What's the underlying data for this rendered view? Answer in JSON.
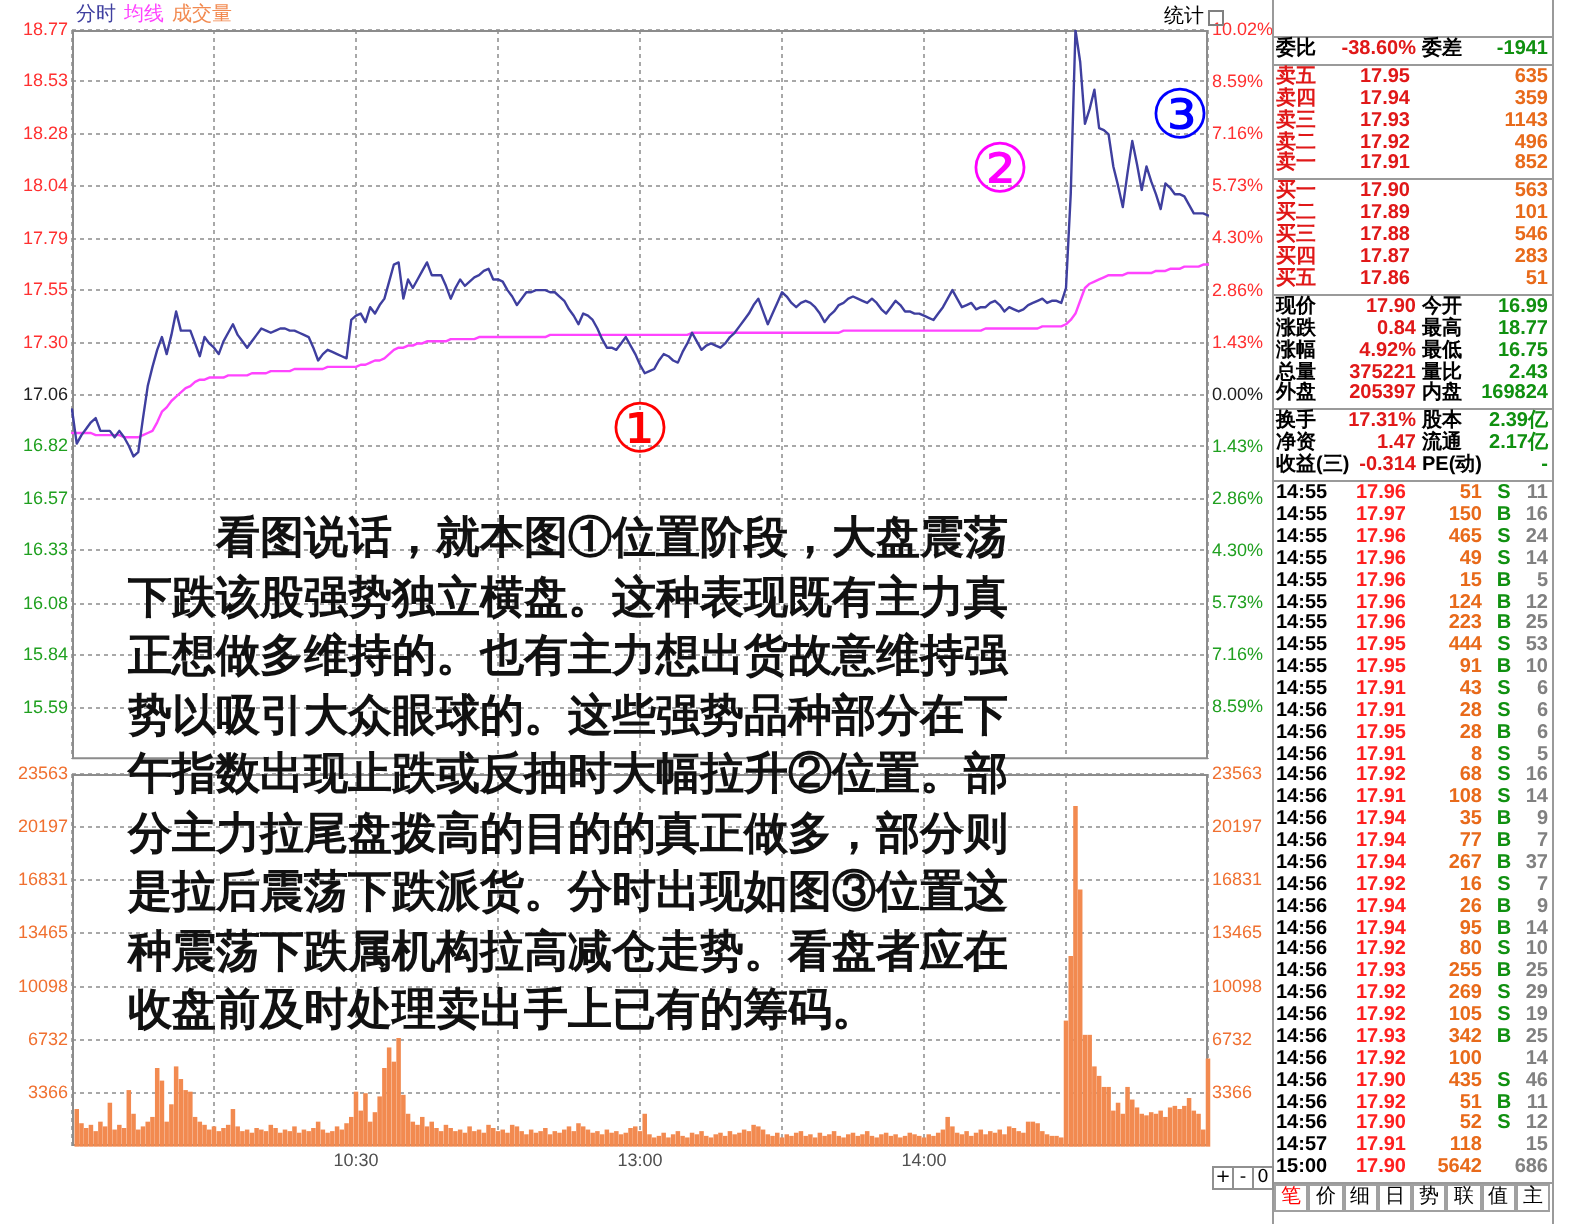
{
  "chart_data": [
    {
      "type": "line",
      "legend": "top left",
      "grid": true,
      "categories": [
        null,
        null,
        null,
        null,
        null,
        null,
        null,
        null,
        null,
        null,
        null,
        null,
        null,
        null,
        null,
        null,
        null,
        null,
        null,
        null,
        null,
        null,
        null,
        null,
        null,
        null,
        null,
        null,
        null,
        null,
        null,
        null,
        null,
        null,
        null,
        null,
        null,
        null,
        null,
        null,
        null,
        null,
        null,
        null,
        null,
        null,
        null,
        null,
        null,
        null,
        null,
        null,
        null,
        null,
        null,
        null,
        null,
        null,
        null,
        null,
        null,
        null,
        null,
        null,
        null,
        null,
        null,
        null,
        null,
        null,
        null,
        null,
        null,
        null,
        null,
        null,
        null,
        null,
        null,
        null,
        null,
        null,
        null,
        null,
        null,
        null,
        null,
        null,
        null,
        null,
        null,
        null,
        null,
        null,
        null,
        null,
        null,
        null,
        null,
        null,
        null,
        null,
        null,
        null,
        null,
        null,
        null,
        null,
        null,
        null,
        null,
        null,
        null,
        null,
        null,
        null,
        null,
        null,
        null,
        null,
        null,
        null,
        null,
        null,
        null,
        null,
        null,
        null,
        null,
        null,
        null,
        null,
        null,
        null,
        null,
        null,
        null,
        null,
        null,
        null,
        null,
        null,
        null,
        null,
        null,
        null,
        null,
        null,
        null,
        null,
        null,
        null,
        null,
        null,
        null,
        null,
        null,
        null,
        null,
        null,
        null,
        null,
        null,
        null,
        null,
        null,
        null,
        null,
        null,
        null,
        null,
        null,
        null,
        null,
        null,
        null,
        null,
        null,
        null,
        null,
        null,
        null,
        null,
        null,
        null,
        null,
        null,
        null,
        null,
        null,
        null,
        null,
        null,
        null,
        null,
        null,
        null,
        null,
        null,
        null,
        null,
        null,
        null,
        null,
        null,
        null,
        null,
        null,
        null,
        null,
        null,
        null,
        null,
        null,
        null,
        null,
        null,
        null,
        null,
        null,
        null,
        null,
        null,
        null,
        null,
        null,
        null,
        null,
        null,
        null,
        null,
        null,
        null,
        null,
        null,
        null,
        null,
        null,
        null,
        null,
        null
      ],
      "ylim": [
        15.35,
        18.77
      ],
      "yticks": [
        18.77,
        18.53,
        18.28,
        18.04,
        17.79,
        17.55,
        {
          "value": 17.3,
          "label": "17.30"
        },
        17.06,
        16.82,
        16.57,
        16.33,
        16.08,
        15.84,
        15.59
      ],
      "y2lim": [
        -10.02,
        10.02
      ],
      "y2ticks": [
        {
          "value": 10.02,
          "label": "10.02%"
        },
        {
          "value": 8.59,
          "label": "8.59%"
        },
        {
          "value": 7.16,
          "label": "7.16%"
        },
        {
          "value": 5.73,
          "label": "5.73%"
        },
        {
          "value": 4.3,
          "label": "4.30%"
        },
        {
          "value": 2.86,
          "label": "2.86%"
        },
        {
          "value": 1.43,
          "label": "1.43%"
        },
        {
          "value": 0,
          "label": "0.00%"
        },
        {
          "value": -1.43,
          "label": "1.43%"
        },
        {
          "value": -2.86,
          "label": "2.86%"
        },
        {
          "value": -4.3,
          "label": "4.30%"
        },
        {
          "value": -5.73,
          "label": "5.73%"
        },
        {
          "value": -7.16,
          "label": "7.16%"
        },
        {
          "value": -8.59,
          "label": "8.59%"
        }
      ],
      "series": [
        {
          "name": "分时",
          "color": "#3f3f9f",
          "values": [
            16.99,
            16.83,
            16.87,
            16.9,
            16.93,
            16.95,
            16.89,
            16.89,
            16.89,
            16.86,
            16.89,
            16.86,
            16.82,
            16.77,
            16.79,
            16.95,
            17.1,
            17.19,
            17.27,
            17.33,
            17.25,
            17.34,
            17.45,
            17.36,
            17.36,
            17.36,
            17.3,
            17.24,
            17.33,
            17.3,
            17.28,
            17.25,
            17.31,
            17.35,
            17.39,
            17.34,
            17.31,
            17.28,
            17.31,
            17.34,
            17.37,
            17.36,
            17.35,
            17.36,
            17.37,
            17.37,
            17.36,
            17.36,
            17.35,
            17.34,
            17.33,
            17.28,
            17.22,
            17.25,
            17.27,
            17.26,
            17.25,
            17.24,
            17.23,
            17.41,
            17.43,
            17.44,
            17.4,
            17.47,
            17.44,
            17.48,
            17.51,
            17.59,
            17.67,
            17.68,
            17.51,
            17.6,
            17.56,
            17.6,
            17.64,
            17.68,
            17.62,
            17.62,
            17.62,
            17.57,
            17.51,
            17.56,
            17.6,
            17.57,
            17.59,
            17.61,
            17.62,
            17.64,
            17.65,
            17.6,
            17.6,
            17.59,
            17.55,
            17.52,
            17.48,
            17.51,
            17.54,
            17.54,
            17.55,
            17.55,
            17.55,
            17.54,
            17.54,
            17.52,
            17.5,
            17.46,
            17.43,
            17.39,
            17.44,
            17.43,
            17.41,
            17.37,
            17.32,
            17.28,
            17.28,
            17.27,
            17.3,
            17.33,
            17.29,
            17.25,
            17.2,
            17.16,
            17.17,
            17.18,
            17.22,
            17.25,
            17.24,
            17.22,
            17.21,
            17.26,
            17.3,
            17.35,
            17.31,
            17.27,
            17.29,
            17.3,
            17.29,
            17.28,
            17.3,
            17.33,
            17.35,
            17.38,
            17.41,
            17.44,
            17.48,
            17.51,
            17.45,
            17.39,
            17.44,
            17.49,
            17.54,
            17.52,
            17.49,
            17.47,
            17.49,
            17.5,
            17.49,
            17.47,
            17.44,
            17.4,
            17.43,
            17.45,
            17.48,
            17.49,
            17.51,
            17.52,
            17.51,
            17.5,
            17.49,
            17.51,
            17.49,
            17.46,
            17.44,
            17.47,
            17.5,
            17.48,
            17.45,
            17.45,
            17.44,
            17.44,
            17.43,
            17.42,
            17.41,
            17.44,
            17.47,
            17.51,
            17.55,
            17.51,
            17.47,
            17.48,
            17.49,
            17.46,
            17.47,
            17.47,
            17.49,
            17.5,
            17.48,
            17.45,
            17.47,
            17.46,
            17.45,
            17.46,
            17.48,
            17.49,
            17.5,
            17.51,
            17.49,
            17.5,
            17.5,
            17.49,
            17.56,
            18.0,
            18.77,
            18.62,
            18.33,
            18.4,
            18.49,
            18.31,
            18.3,
            18.28,
            18.13,
            18.04,
            17.94,
            18.1,
            18.25,
            18.14,
            18.02,
            18.13,
            18.06,
            18.0,
            17.93,
            18.05,
            18.03,
            18.0,
            18.0,
            17.99,
            17.95,
            17.91,
            17.91,
            17.91,
            17.9
          ]
        },
        {
          "name": "均线",
          "color": "#ff44ff",
          "values": [
            16.88,
            16.88,
            16.88,
            16.88,
            16.88,
            16.87,
            16.87,
            16.87,
            16.87,
            16.87,
            16.87,
            16.86,
            16.86,
            16.86,
            16.86,
            16.87,
            16.88,
            16.89,
            16.93,
            16.98,
            17.0,
            17.03,
            17.05,
            17.07,
            17.09,
            17.1,
            17.12,
            17.13,
            17.13,
            17.14,
            17.14,
            17.14,
            17.14,
            17.15,
            17.15,
            17.15,
            17.15,
            17.15,
            17.16,
            17.16,
            17.16,
            17.16,
            17.17,
            17.17,
            17.17,
            17.17,
            17.17,
            17.18,
            17.18,
            17.18,
            17.18,
            17.18,
            17.18,
            17.18,
            17.19,
            17.19,
            17.19,
            17.19,
            17.19,
            17.19,
            17.19,
            17.2,
            17.2,
            17.21,
            17.22,
            17.22,
            17.23,
            17.25,
            17.27,
            17.28,
            17.28,
            17.29,
            17.29,
            17.3,
            17.3,
            17.31,
            17.31,
            17.31,
            17.31,
            17.31,
            17.32,
            17.32,
            17.32,
            17.32,
            17.32,
            17.32,
            17.33,
            17.33,
            17.33,
            17.33,
            17.33,
            17.33,
            17.33,
            17.33,
            17.33,
            17.33,
            17.33,
            17.33,
            17.33,
            17.33,
            17.33,
            17.34,
            17.34,
            17.34,
            17.34,
            17.34,
            17.34,
            17.34,
            17.34,
            17.34,
            17.34,
            17.34,
            17.34,
            17.34,
            17.34,
            17.34,
            17.34,
            17.34,
            17.34,
            17.34,
            17.34,
            17.34,
            17.34,
            17.34,
            17.34,
            17.34,
            17.34,
            17.34,
            17.34,
            17.34,
            17.34,
            17.35,
            17.35,
            17.35,
            17.35,
            17.35,
            17.35,
            17.35,
            17.35,
            17.35,
            17.35,
            17.35,
            17.35,
            17.35,
            17.35,
            17.35,
            17.35,
            17.35,
            17.35,
            17.35,
            17.35,
            17.35,
            17.35,
            17.35,
            17.35,
            17.35,
            17.35,
            17.35,
            17.35,
            17.35,
            17.35,
            17.35,
            17.35,
            17.36,
            17.36,
            17.36,
            17.36,
            17.36,
            17.36,
            17.36,
            17.36,
            17.36,
            17.36,
            17.36,
            17.36,
            17.36,
            17.36,
            17.36,
            17.36,
            17.36,
            17.36,
            17.36,
            17.36,
            17.36,
            17.36,
            17.36,
            17.36,
            17.36,
            17.36,
            17.36,
            17.36,
            17.36,
            17.36,
            17.37,
            17.37,
            17.37,
            17.37,
            17.37,
            17.37,
            17.37,
            17.37,
            17.37,
            17.37,
            17.37,
            17.37,
            17.38,
            17.38,
            17.38,
            17.38,
            17.38,
            17.39,
            17.41,
            17.44,
            17.5,
            17.56,
            17.58,
            17.59,
            17.6,
            17.61,
            17.62,
            17.62,
            17.62,
            17.62,
            17.63,
            17.63,
            17.63,
            17.63,
            17.63,
            17.63,
            17.64,
            17.64,
            17.64,
            17.65,
            17.65,
            17.65,
            17.66,
            17.66,
            17.66,
            17.66,
            17.67,
            17.67
          ]
        }
      ],
      "annotations": [
        "统计",
        "①",
        "②",
        "③",
        "看图说话，就本图①位置阶段，大盘震荡下跌该股强势独立横盘。这种表现既有主力真正想做多维持的。也有主力想出货故意维持强势以吸引大众眼球的。这些强势品种部分在下午指数出现止跌或反抽时大幅拉升②位置。部分主力拉尾盘拨高的目的的真正做多，部分则是拉后震荡下跌派货。分时出现如图③位置这种震荡下跌属机构拉高减仓走势。看盘者应在收盘前及时处理卖出手上已有的筹码。"
      ]
    },
    {
      "type": "bar",
      "legend": "top left",
      "grid": true,
      "categories": [
        null,
        null,
        null,
        null,
        null,
        null,
        null,
        null,
        null,
        null,
        null,
        null,
        null,
        null,
        null,
        null,
        null,
        null,
        null,
        null,
        null,
        null,
        null,
        null,
        null,
        null,
        null,
        null,
        null,
        null,
        null,
        null,
        null,
        null,
        null,
        null,
        null,
        null,
        null,
        null,
        null,
        null,
        null,
        null,
        null,
        null,
        null,
        null,
        null,
        null,
        null,
        null,
        null,
        null,
        null,
        null,
        null,
        null,
        null,
        null,
        "10:30",
        null,
        null,
        null,
        null,
        null,
        null,
        null,
        null,
        null,
        null,
        null,
        null,
        null,
        null,
        null,
        null,
        null,
        null,
        null,
        null,
        null,
        null,
        null,
        null,
        null,
        null,
        null,
        null,
        null,
        null,
        null,
        null,
        null,
        null,
        null,
        null,
        null,
        null,
        null,
        null,
        null,
        null,
        null,
        null,
        null,
        null,
        null,
        null,
        null,
        null,
        null,
        null,
        null,
        null,
        null,
        null,
        null,
        null,
        null,
        "13:00",
        null,
        null,
        null,
        null,
        null,
        null,
        null,
        null,
        null,
        null,
        null,
        null,
        null,
        null,
        null,
        null,
        null,
        null,
        null,
        null,
        null,
        null,
        null,
        null,
        null,
        null,
        null,
        null,
        null,
        null,
        null,
        null,
        null,
        null,
        null,
        null,
        null,
        null,
        null,
        null,
        null,
        null,
        null,
        null,
        null,
        null,
        null,
        null,
        null,
        null,
        null,
        null,
        null,
        null,
        null,
        null,
        null,
        null,
        null,
        "14:00",
        null,
        null,
        null,
        null,
        null,
        null,
        null,
        null,
        null,
        null,
        null,
        null,
        null,
        null,
        null,
        null,
        null,
        null,
        null,
        null,
        null,
        null,
        null,
        null,
        null,
        null,
        null,
        null,
        null,
        null,
        null,
        null,
        null,
        null,
        null,
        null,
        null,
        null,
        null,
        null,
        null,
        null,
        null,
        null,
        null,
        null,
        null,
        null,
        null,
        null,
        null,
        null,
        null,
        null,
        null,
        null,
        null,
        null,
        null,
        null
      ],
      "ylim": [
        0,
        23563
      ],
      "yticks": [
        3366,
        6732,
        10098,
        13465,
        16831,
        20197,
        23563
      ],
      "y2lim": [
        0,
        23563
      ],
      "y2ticks": [
        3366,
        6732,
        10098,
        13465,
        16831,
        20197,
        23563
      ],
      "series": [
        {
          "name": "成交量",
          "color": "#f28a50",
          "values": [
            null,
            2300,
            1400,
            1100,
            1300,
            900,
            1500,
            1200,
            2700,
            1000,
            1300,
            1100,
            3500,
            2000,
            1000,
            1200,
            1500,
            1800,
            4900,
            4100,
            1500,
            2600,
            5000,
            4200,
            3500,
            3400,
            1800,
            1500,
            1300,
            1000,
            1200,
            900,
            1100,
            1300,
            2300,
            1200,
            900,
            1000,
            800,
            1100,
            1000,
            900,
            1300,
            1100,
            800,
            1000,
            900,
            1200,
            800,
            1000,
            900,
            1100,
            1500,
            1000,
            800,
            900,
            1200,
            1000,
            1400,
            1800,
            3400,
            2200,
            3300,
            1500,
            2100,
            3100,
            4900,
            6200,
            5300,
            6800,
            3200,
            2000,
            1500,
            1300,
            1800,
            1200,
            1500,
            1100,
            900,
            1300,
            1100,
            900,
            1000,
            800,
            1200,
            900,
            1000,
            800,
            1300,
            1100,
            900,
            1000,
            800,
            1300,
            1200,
            900,
            700,
            1000,
            800,
            900,
            1100,
            700,
            900,
            800,
            1000,
            1200,
            900,
            1400,
            1200,
            1000,
            800,
            900,
            700,
            1000,
            800,
            900,
            700,
            800,
            1100,
            1200,
            900,
            2000,
            700,
            500,
            600,
            800,
            500,
            700,
            900,
            600,
            500,
            800,
            700,
            900,
            600,
            500,
            700,
            800,
            600,
            900,
            700,
            800,
            1000,
            900,
            1300,
            1200,
            1000,
            700,
            600,
            800,
            500,
            700,
            600,
            800,
            900,
            600,
            700,
            500,
            800,
            600,
            700,
            900,
            600,
            500,
            700,
            800,
            600,
            700,
            900,
            600,
            500,
            700,
            800,
            600,
            700,
            500,
            600,
            800,
            700,
            600,
            500,
            700,
            600,
            800,
            1000,
            1800,
            1200,
            800,
            700,
            900,
            600,
            800,
            1000,
            700,
            900,
            800,
            1000,
            700,
            1200,
            1100,
            900,
            800,
            1500,
            1500,
            1400,
            900,
            700,
            600,
            600,
            500,
            7900,
            12000,
            21500,
            16200,
            7000,
            7000,
            5000,
            4400,
            3700,
            3700,
            2200,
            2700,
            2000,
            3700,
            2900,
            2400,
            2000,
            1900,
            2100,
            2000,
            2200,
            1800,
            2400,
            2500,
            2300,
            2500,
            3000,
            2200,
            2000,
            1000,
            5500
          ]
        }
      ],
      "annotations": [
        "+",
        "-",
        "0"
      ]
    },
    {
      "type": "other",
      "annotations": [
        "委比 -38.60% 委差 -1941",
        "卖五 17.95 635",
        "卖四 17.94 359",
        "卖三 17.93 1143",
        "卖二 17.92 496",
        "卖一 17.91 852",
        "买一 17.90 563",
        "买二 17.89 101",
        "买三 17.88 546",
        "买四 17.87 283",
        "买五 17.86 51",
        "现价 17.90 今开 16.99",
        "涨跌 0.84 最高 18.77",
        "涨幅 4.92% 最低 16.75",
        "总量 375221 量比 2.43",
        "外盘 205397 内盘 169824",
        "换手 17.31% 股本 2.39亿",
        "净资 1.47 流通 2.17亿",
        "收益(三) -0.314 PE(动) -",
        "14:55 17.96 51 S 11",
        "14:55 17.97 150 B 16",
        "14:55 17.96 465 S 24",
        "14:55 17.96 49 S 14",
        "14:55 17.96 15 B 5",
        "14:55 17.96 124 B 12",
        "14:55 17.96 223 B 25",
        "14:55 17.95 444 S 53",
        "14:55 17.95 91 B 10",
        "14:55 17.91 43 S 6",
        "14:56 17.91 28 S 6",
        "14:56 17.95 28 B 6",
        "14:56 17.91 8 S 5",
        "14:56 17.92 68 S 16",
        "14:56 17.91 108 S 14",
        "14:56 17.94 35 B 9",
        "14:56 17.94 77 B 7",
        "14:56 17.94 267 B 37",
        "14:56 17.92 16 S 7",
        "14:56 17.94 26 B 9",
        "14:56 17.94 95 B 14",
        "14:56 17.92 80 S 10",
        "14:56 17.93 255 B 25",
        "14:56 17.92 269 S 29",
        "14:56 17.92 105 S 19",
        "14:56 17.93 342 B 25",
        "14:56 17.92 100  14",
        "14:56 17.90 435 S 46",
        "14:56 17.92 51 B 11",
        "14:56 17.90 52 S 12",
        "14:57 17.91 118  15",
        "15:00 17.90 5642  686",
        "笔 价 细 日 势 联 值 主"
      ]
    }
  ]
}
